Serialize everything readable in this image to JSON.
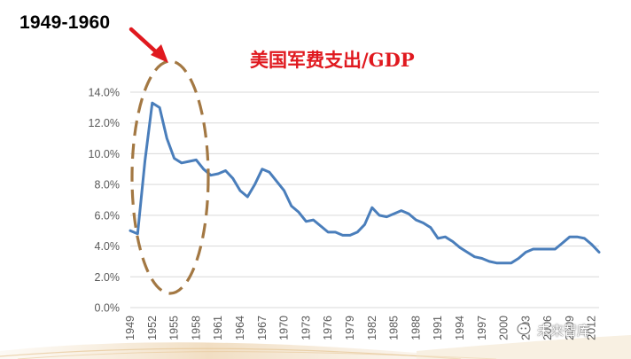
{
  "header": {
    "period_label": "1949-1960",
    "title": "美国军费支出/GDP"
  },
  "watermark": {
    "text": "未来智库"
  },
  "colors": {
    "line": "#4a7ebb",
    "highlight_ellipse": "#a37843",
    "arrow": "#e0191f",
    "title": "#e0191f",
    "grid": "#d9d9d9"
  },
  "chart_data": {
    "type": "line",
    "title": "美国军费支出/GDP",
    "xlabel": "",
    "ylabel": "",
    "ylim": [
      0,
      14
    ],
    "y_ticks": [
      "0.0%",
      "2.0%",
      "4.0%",
      "6.0%",
      "8.0%",
      "10.0%",
      "12.0%",
      "14.0%"
    ],
    "x_ticks": [
      "1949",
      "1952",
      "1955",
      "1958",
      "1961",
      "1964",
      "1967",
      "1970",
      "1973",
      "1976",
      "1979",
      "1982",
      "1985",
      "1988",
      "1991",
      "1994",
      "1997",
      "2000",
      "2003",
      "2006",
      "2009",
      "2012"
    ],
    "grid": true,
    "legend": "none",
    "series": [
      {
        "x": [
          1949,
          1950,
          1951,
          1952,
          1953,
          1954,
          1955,
          1956,
          1957,
          1958,
          1959,
          1960,
          1961,
          1962,
          1963,
          1964,
          1965,
          1966,
          1967,
          1968,
          1969,
          1970,
          1971,
          1972,
          1973,
          1974,
          1975,
          1976,
          1977,
          1978,
          1979,
          1980,
          1981,
          1982,
          1983,
          1984,
          1985,
          1986,
          1987,
          1988,
          1989,
          1990,
          1991,
          1992,
          1993,
          1994,
          1995,
          1996,
          1997,
          1998,
          1999,
          2000,
          2001,
          2002,
          2003,
          2004,
          2005,
          2006,
          2007,
          2008,
          2009,
          2010,
          2011,
          2012,
          2013
        ],
        "values": [
          5.0,
          4.8,
          9.5,
          13.3,
          13.0,
          11.0,
          9.7,
          9.4,
          9.5,
          9.6,
          9.0,
          8.6,
          8.7,
          8.9,
          8.4,
          7.6,
          7.2,
          8.0,
          9.0,
          8.8,
          8.2,
          7.6,
          6.6,
          6.2,
          5.6,
          5.7,
          5.3,
          4.9,
          4.9,
          4.7,
          4.7,
          4.9,
          5.4,
          6.5,
          6.0,
          5.9,
          6.1,
          6.3,
          6.1,
          5.7,
          5.5,
          5.2,
          4.5,
          4.6,
          4.3,
          3.9,
          3.6,
          3.3,
          3.2,
          3.0,
          2.9,
          2.9,
          2.9,
          3.2,
          3.6,
          3.8,
          3.8,
          3.8,
          3.8,
          4.2,
          4.6,
          4.6,
          4.5,
          4.1,
          3.6
        ]
      }
    ],
    "annotations": [
      {
        "text": "1949-1960",
        "spans": [
          1949,
          1960
        ]
      }
    ]
  }
}
